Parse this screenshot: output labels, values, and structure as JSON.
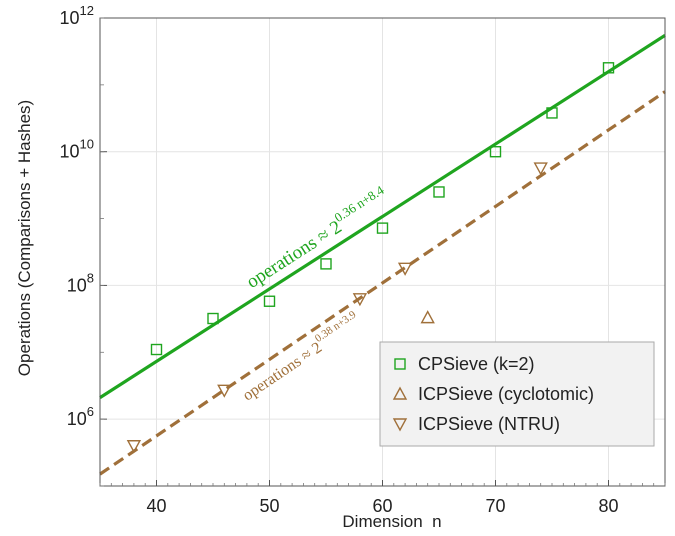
{
  "chart_data": {
    "type": "scatter",
    "xlabel": "Dimension  n",
    "ylabel": "Operations (Comparisons + Hashes)",
    "xlim": [
      35,
      85
    ],
    "ylim": [
      100000,
      1000000000000
    ],
    "yscale": "log",
    "grid": true,
    "legend_position": "bottom-right",
    "x_ticks": [
      {
        "value": 40,
        "label": "40"
      },
      {
        "value": 50,
        "label": "50"
      },
      {
        "value": 60,
        "label": "60"
      },
      {
        "value": 70,
        "label": "70"
      },
      {
        "value": 80,
        "label": "80"
      }
    ],
    "y_ticks": [
      {
        "value": 1000000,
        "base": "10",
        "exp": "6"
      },
      {
        "value": 100000000,
        "base": "10",
        "exp": "8"
      },
      {
        "value": 10000000000,
        "base": "10",
        "exp": "10"
      },
      {
        "value": 1000000000000,
        "base": "10",
        "exp": "12"
      }
    ],
    "series": [
      {
        "name": "CPSieve (k=2)",
        "marker": "square",
        "color": "#1fa51f",
        "points": [
          {
            "x": 40,
            "y": 11000000
          },
          {
            "x": 45,
            "y": 32000000
          },
          {
            "x": 50,
            "y": 58000000
          },
          {
            "x": 55,
            "y": 210000000
          },
          {
            "x": 60,
            "y": 720000000
          },
          {
            "x": 65,
            "y": 2500000000
          },
          {
            "x": 70,
            "y": 10000000000
          },
          {
            "x": 75,
            "y": 38000000000
          },
          {
            "x": 80,
            "y": 180000000000
          }
        ]
      },
      {
        "name": "ICPSieve (cyclotomic)",
        "marker": "triangle-up",
        "color": "#a0703a",
        "points": [
          {
            "x": 64,
            "y": 33000000
          }
        ]
      },
      {
        "name": "ICPSieve (NTRU)",
        "marker": "triangle-down",
        "color": "#a0703a",
        "points": [
          {
            "x": 38,
            "y": 400000
          },
          {
            "x": 46,
            "y": 2700000
          },
          {
            "x": 58,
            "y": 63000000
          },
          {
            "x": 62,
            "y": 180000000
          },
          {
            "x": 74,
            "y": 5700000000
          }
        ]
      }
    ],
    "fits": [
      {
        "name": "CPSieve fit",
        "style": "solid",
        "color": "#1fa51f",
        "slope": 0.36,
        "intercept": 8.4,
        "label_main": "operations ≈ 2",
        "label_exp": "0.36 n+8.4"
      },
      {
        "name": "ICPSieve fit",
        "style": "dashed",
        "color": "#a0703a",
        "slope": 0.38,
        "intercept": 3.9,
        "label_main": "operations  ≈ 2",
        "label_exp": "0.38 n+3.9"
      }
    ]
  }
}
